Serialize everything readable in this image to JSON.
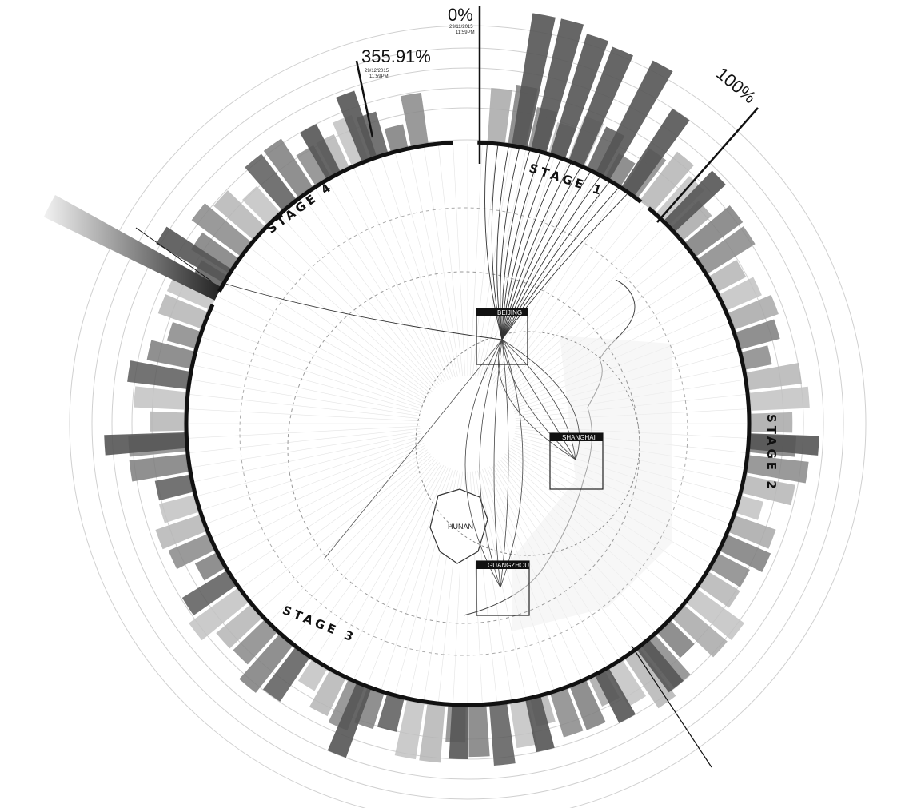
{
  "markers": [
    {
      "percent": "0%",
      "date": "29/11/2015",
      "time": "11:59PM"
    },
    {
      "percent": "100%"
    },
    {
      "percent": "355.91%",
      "date": "29/12/2015",
      "time": "11:59PM"
    }
  ],
  "stages": [
    "STAGE 1",
    "STAGE 2",
    "STAGE 3",
    "STAGE 4"
  ],
  "cities": [
    "BEIJING",
    "SHANGHAI",
    "GUANGZHOU"
  ],
  "regions": [
    "HUNAN"
  ],
  "colors": {
    "ink": "#111111",
    "dark_bar": "#555555",
    "mid_bar": "#8c8c8c",
    "light_bar": "#bdbdbd",
    "grid": "#cfcfcf"
  }
}
